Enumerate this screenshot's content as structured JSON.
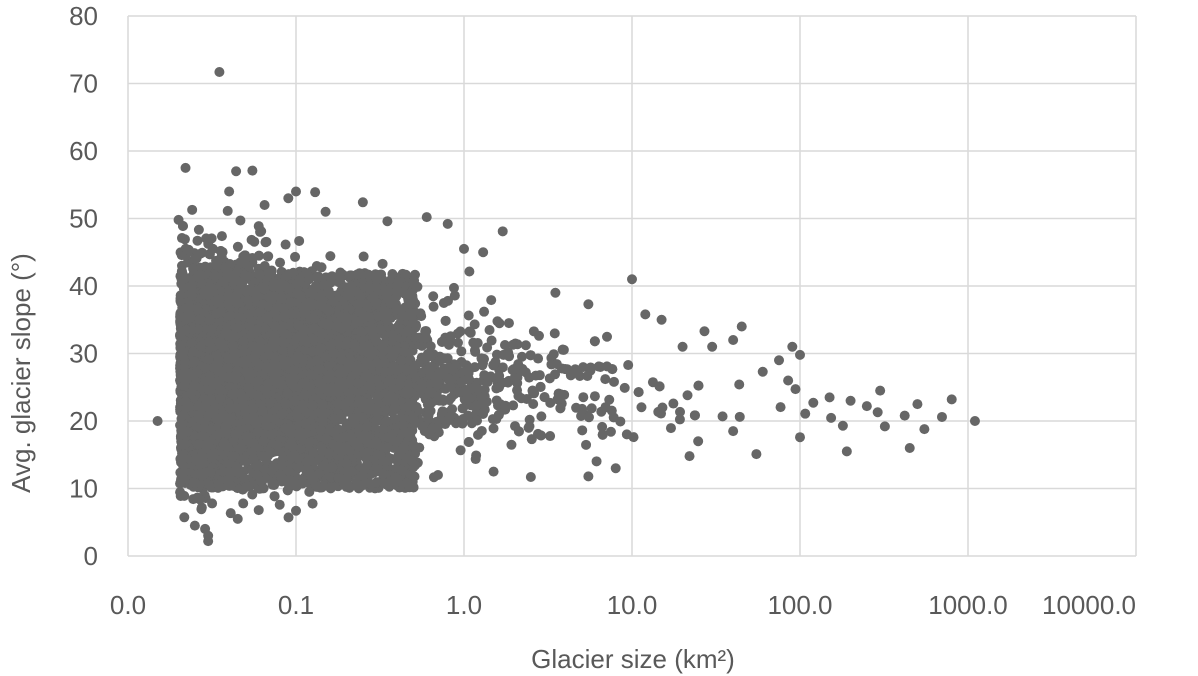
{
  "chart_data": {
    "type": "scatter",
    "title": "",
    "xlabel": "Glacier size (km²)",
    "ylabel": "Avg. glacier slope (°)",
    "x_scale": "log",
    "xlim": [
      0.01,
      10000
    ],
    "ylim": [
      0,
      80
    ],
    "x_ticks": [
      0.01,
      0.1,
      1,
      10,
      100,
      1000,
      10000
    ],
    "x_tick_labels": [
      "0.0",
      "0.1",
      "1.0",
      "10.0",
      "100.0",
      "1000.0",
      "10000.0"
    ],
    "y_ticks": [
      0,
      10,
      20,
      30,
      40,
      50,
      60,
      70,
      80
    ],
    "y_tick_labels": [
      "0",
      "10",
      "20",
      "30",
      "40",
      "50",
      "60",
      "70",
      "80"
    ],
    "grid": true,
    "legend": "none",
    "marker_color": "#666666",
    "series": [
      {
        "points": [
          [
            0.035,
            71.7
          ],
          [
            0.022,
            57.5
          ],
          [
            0.044,
            57.0
          ],
          [
            0.055,
            57.1
          ],
          [
            0.04,
            54.0
          ],
          [
            0.1,
            54.0
          ],
          [
            0.13,
            53.9
          ],
          [
            0.25,
            52.4
          ],
          [
            0.09,
            53.0
          ],
          [
            0.065,
            52.0
          ],
          [
            0.02,
            49.8
          ],
          [
            0.35,
            49.6
          ],
          [
            0.6,
            50.2
          ],
          [
            0.8,
            49.2
          ],
          [
            1.7,
            48.1
          ],
          [
            1.0,
            45.5
          ],
          [
            1.3,
            45.0
          ],
          [
            0.15,
            51.0
          ],
          [
            10.0,
            41.0
          ],
          [
            15.0,
            35.0
          ],
          [
            12.0,
            35.8
          ],
          [
            45.0,
            34.0
          ],
          [
            27.0,
            33.3
          ],
          [
            40.0,
            32.0
          ],
          [
            5.5,
            37.3
          ],
          [
            3.5,
            39.0
          ],
          [
            20.0,
            31.0
          ],
          [
            30.0,
            31.0
          ],
          [
            90.0,
            31.0
          ],
          [
            100.0,
            29.8
          ],
          [
            75.0,
            29.0
          ],
          [
            60.0,
            27.3
          ],
          [
            85.0,
            26.0
          ],
          [
            150.0,
            23.5
          ],
          [
            120.0,
            22.7
          ],
          [
            200.0,
            23.0
          ],
          [
            180.0,
            19.3
          ],
          [
            250.0,
            22.2
          ],
          [
            300.0,
            24.5
          ],
          [
            320.0,
            19.2
          ],
          [
            290.0,
            21.3
          ],
          [
            500.0,
            22.5
          ],
          [
            420.0,
            20.8
          ],
          [
            550.0,
            18.8
          ],
          [
            450.0,
            16.0
          ],
          [
            800.0,
            23.2
          ],
          [
            700.0,
            20.6
          ],
          [
            1100.0,
            20.0
          ],
          [
            190.0,
            15.5
          ],
          [
            100.0,
            17.6
          ],
          [
            55.0,
            15.1
          ],
          [
            40.0,
            18.5
          ],
          [
            22.0,
            14.8
          ],
          [
            8.0,
            13.0
          ],
          [
            5.5,
            11.8
          ],
          [
            2.5,
            11.7
          ],
          [
            0.5,
            10.2
          ],
          [
            0.35,
            10.5
          ],
          [
            0.08,
            7.6
          ],
          [
            0.06,
            6.8
          ],
          [
            0.03,
            2.2
          ],
          [
            0.03,
            3.0
          ],
          [
            0.025,
            4.5
          ],
          [
            0.1,
            6.7
          ],
          [
            0.7,
            12.0
          ],
          [
            1.5,
            12.5
          ],
          [
            0.2,
            11.5
          ],
          [
            0.12,
            9.5
          ],
          [
            0.045,
            5.5
          ],
          [
            0.015,
            20.0
          ]
        ]
      }
    ]
  }
}
